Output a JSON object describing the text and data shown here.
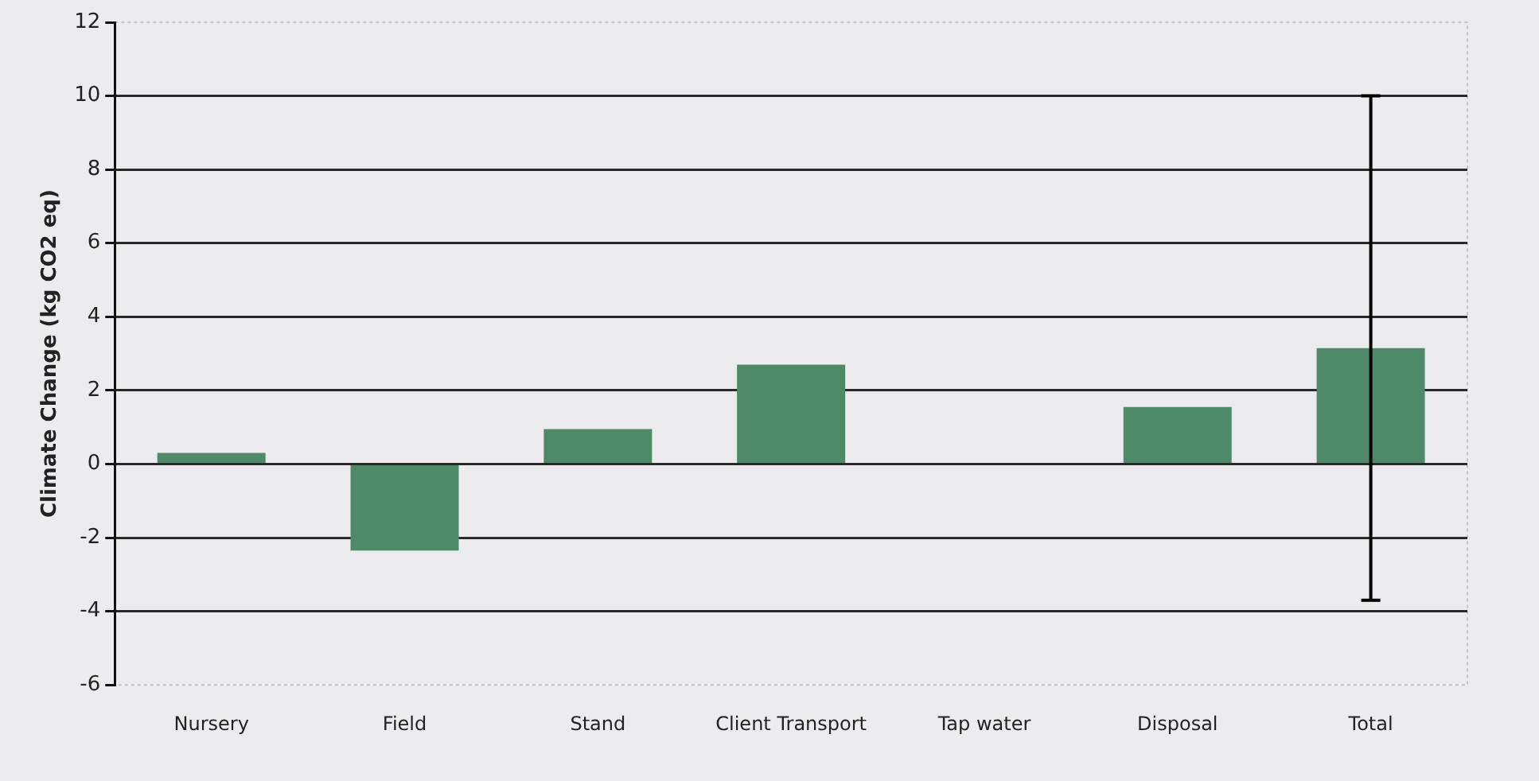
{
  "chart_data": {
    "type": "bar",
    "ylabel": "Climate Change (kg CO2 eq)",
    "categories": [
      "Nursery",
      "Field",
      "Stand",
      "Client Transport",
      "Tap water",
      "Disposal",
      "Total"
    ],
    "values": [
      0.3,
      -2.35,
      0.95,
      2.7,
      0,
      1.55,
      3.15
    ],
    "errors": [
      null,
      null,
      null,
      null,
      null,
      null,
      6.85
    ],
    "color": "#4e8a68",
    "ylim": [
      -6,
      12
    ],
    "yticks": [
      -6,
      -4,
      -2,
      0,
      2,
      4,
      6,
      8,
      10,
      12
    ],
    "grid": "y",
    "legend": false
  }
}
